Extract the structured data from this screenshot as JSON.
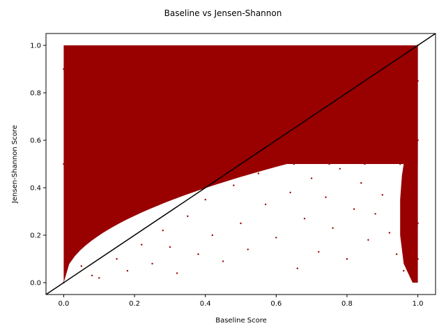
{
  "chart_data": {
    "type": "scatter",
    "title": "Baseline vs Jensen-Shannon",
    "xlabel": "Baseline Score",
    "ylabel": "Jensen-Shannon Score",
    "xlim": [
      -0.05,
      1.05
    ],
    "ylim": [
      -0.05,
      1.05
    ],
    "xticks": [
      0.0,
      0.2,
      0.4,
      0.6,
      0.8,
      1.0
    ],
    "yticks": [
      0.0,
      0.2,
      0.4,
      0.6,
      0.8,
      1.0
    ],
    "xtick_labels": [
      "0.0",
      "0.2",
      "0.4",
      "0.6",
      "0.8",
      "1.0"
    ],
    "ytick_labels": [
      "0.0",
      "0.2",
      "0.4",
      "0.6",
      "0.8",
      "1.0"
    ],
    "grid": false,
    "legend": false,
    "point_color": "#990000",
    "reference_line": {
      "x": [
        -0.05,
        1.05
      ],
      "y": [
        -0.05,
        1.05
      ],
      "color": "#000000"
    },
    "series": [
      {
        "values": [
          [
            0.0,
            0.0
          ],
          [
            0.02,
            0.12
          ],
          [
            0.04,
            0.18
          ],
          [
            0.05,
            0.22
          ],
          [
            0.07,
            0.28
          ],
          [
            0.1,
            0.32
          ],
          [
            0.12,
            0.35
          ],
          [
            0.15,
            0.4
          ],
          [
            0.18,
            0.44
          ],
          [
            0.2,
            0.46
          ],
          [
            0.25,
            0.51
          ],
          [
            0.3,
            0.55
          ],
          [
            0.35,
            0.59
          ],
          [
            0.4,
            0.63
          ],
          [
            0.45,
            0.66
          ],
          [
            0.5,
            0.7
          ],
          [
            0.55,
            0.73
          ],
          [
            0.6,
            0.77
          ],
          [
            0.65,
            0.8
          ],
          [
            0.7,
            0.83
          ],
          [
            0.75,
            0.86
          ],
          [
            0.8,
            0.89
          ],
          [
            0.85,
            0.92
          ],
          [
            0.9,
            0.95
          ],
          [
            0.95,
            0.97
          ],
          [
            1.0,
            1.0
          ],
          [
            0.05,
            0.07
          ],
          [
            0.08,
            0.03
          ],
          [
            0.1,
            0.02
          ],
          [
            0.15,
            0.1
          ],
          [
            0.18,
            0.05
          ],
          [
            0.22,
            0.16
          ],
          [
            0.25,
            0.08
          ],
          [
            0.28,
            0.22
          ],
          [
            0.3,
            0.15
          ],
          [
            0.32,
            0.04
          ],
          [
            0.35,
            0.28
          ],
          [
            0.38,
            0.12
          ],
          [
            0.4,
            0.35
          ],
          [
            0.42,
            0.2
          ],
          [
            0.45,
            0.09
          ],
          [
            0.48,
            0.41
          ],
          [
            0.5,
            0.25
          ],
          [
            0.52,
            0.14
          ],
          [
            0.55,
            0.46
          ],
          [
            0.57,
            0.33
          ],
          [
            0.6,
            0.19
          ],
          [
            0.62,
            0.52
          ],
          [
            0.64,
            0.38
          ],
          [
            0.66,
            0.06
          ],
          [
            0.68,
            0.27
          ],
          [
            0.7,
            0.44
          ],
          [
            0.72,
            0.13
          ],
          [
            0.74,
            0.36
          ],
          [
            0.76,
            0.23
          ],
          [
            0.78,
            0.48
          ],
          [
            0.8,
            0.1
          ],
          [
            0.82,
            0.31
          ],
          [
            0.84,
            0.42
          ],
          [
            0.86,
            0.18
          ],
          [
            0.88,
            0.29
          ],
          [
            0.9,
            0.37
          ],
          [
            0.92,
            0.21
          ],
          [
            0.94,
            0.12
          ],
          [
            0.96,
            0.05
          ],
          [
            0.97,
            0.3
          ],
          [
            0.98,
            0.16
          ],
          [
            0.99,
            0.08
          ],
          [
            0.6,
            0.51
          ],
          [
            0.65,
            0.5
          ],
          [
            0.7,
            0.51
          ],
          [
            0.75,
            0.5
          ],
          [
            0.8,
            0.51
          ],
          [
            0.85,
            0.5
          ],
          [
            0.9,
            0.51
          ],
          [
            0.95,
            0.5
          ],
          [
            0.98,
            0.45
          ],
          [
            0.99,
            0.35
          ],
          [
            1.0,
            0.25
          ],
          [
            1.0,
            0.1
          ],
          [
            0.0,
            0.5
          ],
          [
            0.0,
            0.9
          ],
          [
            0.02,
            0.7
          ],
          [
            0.05,
            0.95
          ],
          [
            0.1,
            0.85
          ],
          [
            0.15,
            0.75
          ],
          [
            0.2,
            0.98
          ],
          [
            0.25,
            0.7
          ],
          [
            0.3,
            0.9
          ],
          [
            0.35,
            0.8
          ],
          [
            0.4,
            0.95
          ],
          [
            0.45,
            0.85
          ],
          [
            0.5,
            0.98
          ],
          [
            0.55,
            0.9
          ],
          [
            0.6,
            0.95
          ],
          [
            0.65,
            0.92
          ],
          [
            0.7,
            0.97
          ],
          [
            0.75,
            0.95
          ],
          [
            0.8,
            0.99
          ],
          [
            0.85,
            0.97
          ],
          [
            0.9,
            0.99
          ],
          [
            0.95,
            0.99
          ],
          [
            1.0,
            0.6
          ],
          [
            1.0,
            0.85
          ]
        ]
      }
    ]
  }
}
